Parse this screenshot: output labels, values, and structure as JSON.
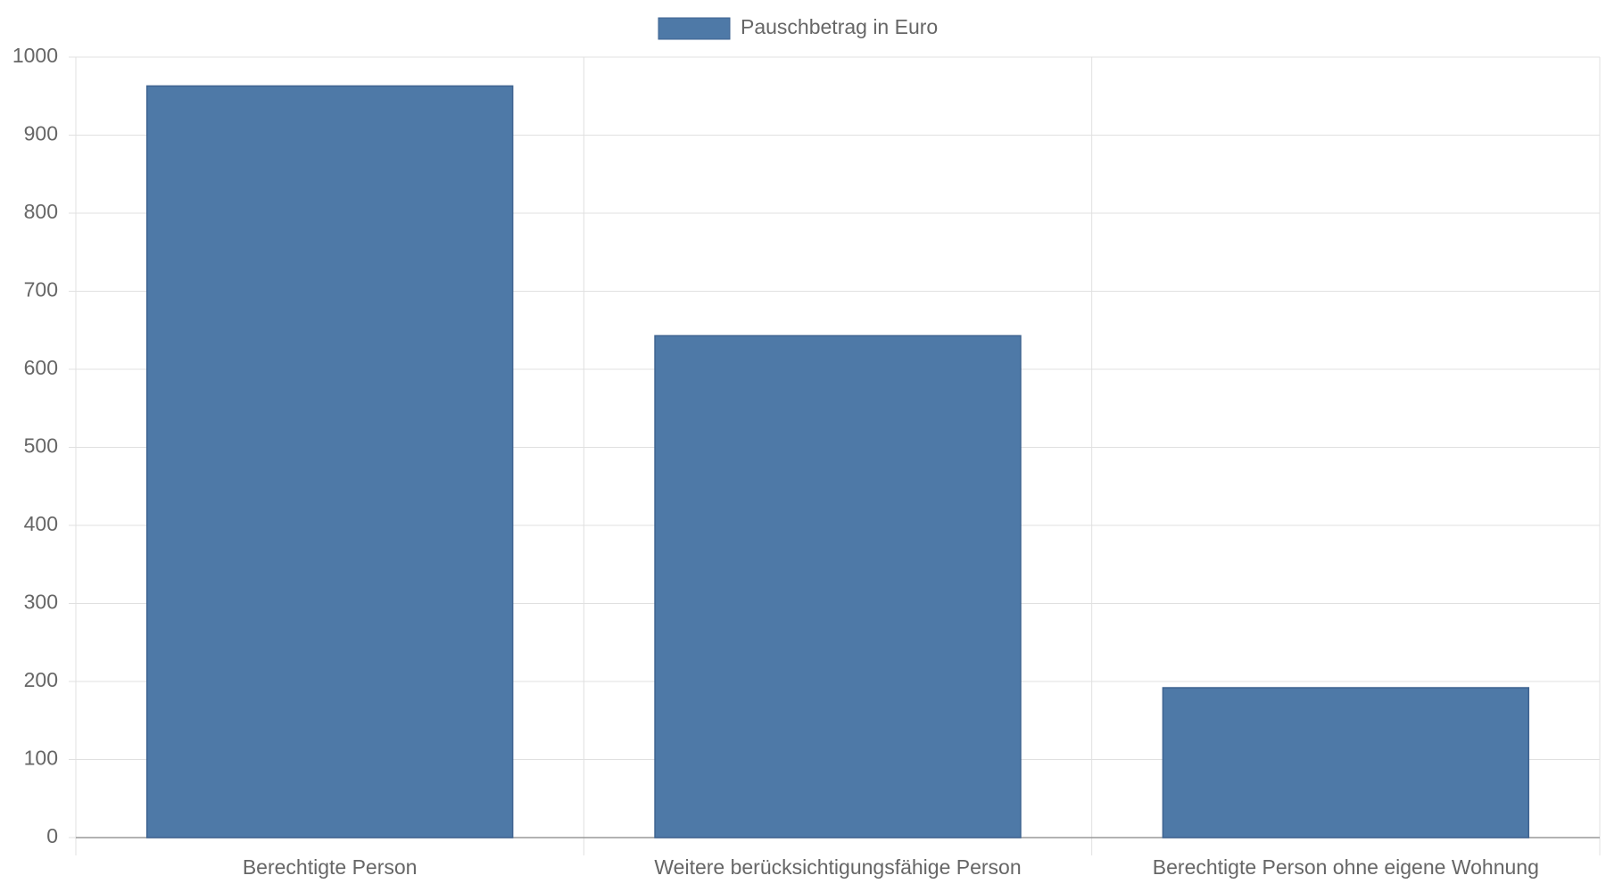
{
  "chart_data": {
    "type": "bar",
    "categories": [
      "Berechtigte Person",
      "Weitere berücksichtigungsfähige Person",
      "Berechtigte Person ohne eigene Wohnung"
    ],
    "series": [
      {
        "name": "Pauschbetrag in Euro",
        "color": "#4e79a7",
        "values": [
          963,
          643,
          192
        ]
      }
    ],
    "ylim": [
      0,
      1000
    ],
    "yticks": [
      0,
      100,
      200,
      300,
      400,
      500,
      600,
      700,
      800,
      900,
      1000
    ],
    "grid": true,
    "legend": "top"
  }
}
